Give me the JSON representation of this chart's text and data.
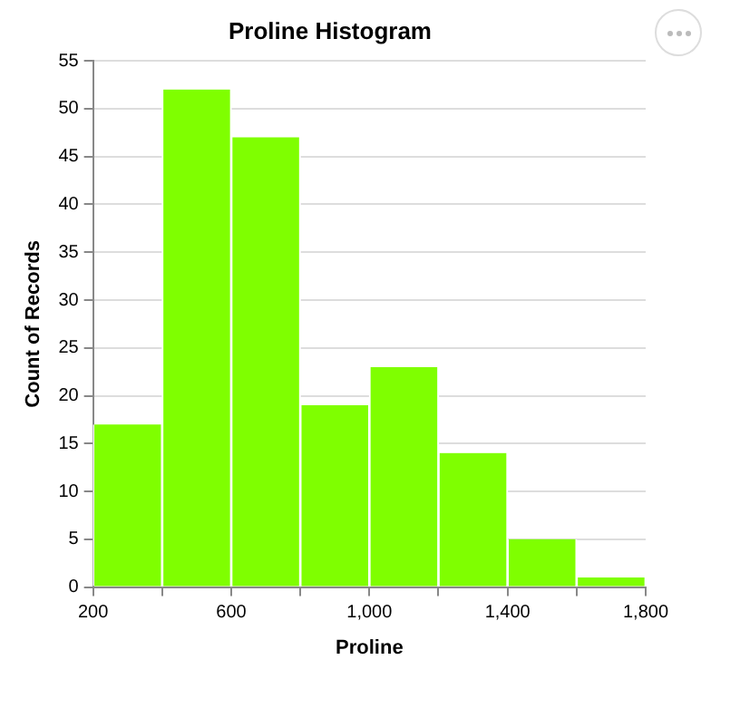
{
  "chart_data": {
    "type": "histogram",
    "title": "Proline Histogram",
    "xlabel": "Proline",
    "ylabel": "Count of Records",
    "bins": [
      200,
      400,
      600,
      800,
      1000,
      1200,
      1400,
      1600,
      1800
    ],
    "values": [
      17,
      52,
      47,
      19,
      23,
      14,
      5,
      1
    ],
    "color": "#7fff00",
    "xlim": [
      200,
      1800
    ],
    "xticks": [
      200,
      {
        "value": 400,
        "label": null
      },
      600,
      {
        "value": 800,
        "label": null
      },
      {
        "value": 1000,
        "label": "1,000"
      },
      {
        "value": 1200,
        "label": null
      },
      {
        "value": 1400,
        "label": "1,400"
      },
      {
        "value": 1600,
        "label": null
      },
      {
        "value": 1800,
        "label": "1,800"
      }
    ],
    "ylim": [
      0,
      55
    ],
    "yticks": [
      0,
      5,
      10,
      15,
      20,
      25,
      30,
      35,
      40,
      45,
      50,
      55
    ],
    "grid": "y",
    "legend": false
  }
}
